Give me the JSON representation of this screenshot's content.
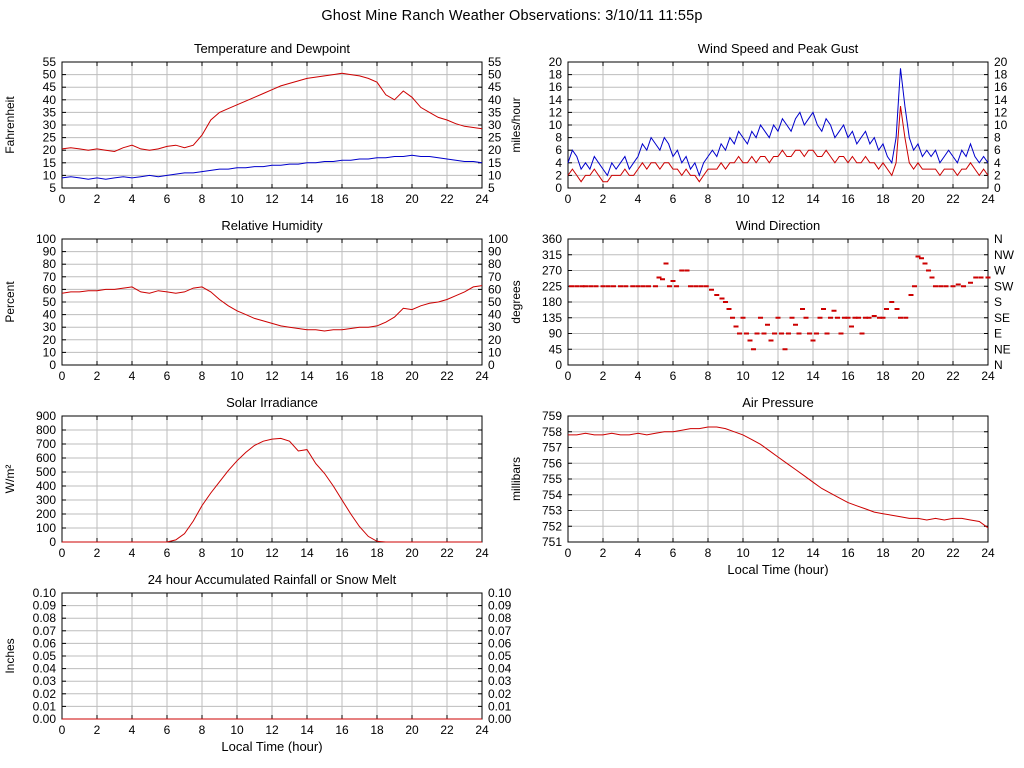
{
  "page_title": "Ghost Mine Ranch Weather Observations: 3/10/11 11:55p",
  "colors": {
    "red": "#cc0000",
    "blue": "#0000cc",
    "grid": "#bdbdbd",
    "axis": "#000000",
    "text": "#000000"
  },
  "x_axis": {
    "min": 0,
    "max": 24,
    "step": 2,
    "label": "Local Time (hour)"
  },
  "chart_data": [
    {
      "id": "temperature",
      "type": "line",
      "title": "Temperature and Dewpoint",
      "ylabel": "Fahrenheit",
      "ylim": [
        5,
        55
      ],
      "ystep": 5,
      "ydecimals": 0,
      "right_axis": "mirror",
      "xlabel": "",
      "x_ticks": [
        0,
        2,
        4,
        6,
        8,
        10,
        12,
        14,
        16,
        18,
        20,
        22,
        24
      ],
      "series": [
        {
          "name": "Temperature",
          "color": "#cc0000",
          "values": [
            20.5,
            21,
            20.5,
            20,
            20.5,
            20,
            19.5,
            21,
            22,
            20.5,
            20,
            20.5,
            21.5,
            22,
            21,
            22,
            26,
            32,
            35,
            36.5,
            38,
            39.5,
            41,
            42.5,
            44,
            45.5,
            46.5,
            47.5,
            48.5,
            49,
            49.5,
            50,
            50.5,
            50,
            49.5,
            48.5,
            47,
            42,
            40,
            43.5,
            41,
            37,
            35,
            33,
            32,
            30.5,
            29.5,
            29,
            28.5
          ]
        },
        {
          "name": "Dewpoint",
          "color": "#0000cc",
          "values": [
            9,
            9.5,
            9,
            8.5,
            9,
            8.5,
            9,
            9.5,
            9,
            9.5,
            10,
            9.5,
            10,
            10.5,
            11,
            11,
            11.5,
            12,
            12.5,
            12.5,
            13,
            13,
            13.5,
            13.5,
            14,
            14,
            14.5,
            14.5,
            15,
            15,
            15.5,
            15.5,
            16,
            16,
            16.5,
            16.5,
            17,
            17,
            17.5,
            17.5,
            18,
            17.5,
            17.5,
            17,
            16.5,
            16,
            15.5,
            15.5,
            15
          ]
        }
      ]
    },
    {
      "id": "windspeed",
      "type": "line",
      "title": "Wind Speed and Peak Gust",
      "ylabel": "miles/hour",
      "ylim": [
        0,
        20
      ],
      "ystep": 2,
      "ydecimals": 0,
      "right_axis": "mirror",
      "xlabel": "",
      "x_ticks": [
        0,
        2,
        4,
        6,
        8,
        10,
        12,
        14,
        16,
        18,
        20,
        22,
        24
      ],
      "series": [
        {
          "name": "Peak Gust",
          "color": "#0000cc",
          "values": [
            4,
            6,
            5,
            3,
            4,
            3,
            5,
            4,
            3,
            2,
            4,
            3,
            4,
            5,
            3,
            4,
            5,
            7,
            6,
            8,
            7,
            6,
            8,
            7,
            5,
            6,
            4,
            5,
            3,
            4,
            2,
            4,
            5,
            6,
            5,
            7,
            6,
            8,
            7,
            9,
            8,
            7,
            9,
            8,
            10,
            9,
            8,
            10,
            9,
            11,
            10,
            9,
            11,
            12,
            10,
            11,
            12,
            10,
            9,
            11,
            10,
            8,
            9,
            10,
            8,
            9,
            7,
            8,
            9,
            7,
            8,
            6,
            7,
            5,
            4,
            8,
            19,
            13,
            8,
            6,
            7,
            5,
            6,
            5,
            6,
            4,
            5,
            6,
            5,
            4,
            6,
            5,
            7,
            5,
            4,
            5,
            4
          ]
        },
        {
          "name": "Wind Speed",
          "color": "#cc0000",
          "values": [
            2,
            3,
            2,
            1,
            2,
            2,
            3,
            2,
            1,
            1,
            2,
            2,
            2,
            3,
            2,
            2,
            3,
            4,
            3,
            4,
            4,
            3,
            4,
            4,
            3,
            3,
            2,
            3,
            2,
            2,
            1,
            2,
            3,
            3,
            3,
            4,
            3,
            4,
            4,
            5,
            4,
            4,
            5,
            4,
            5,
            5,
            4,
            5,
            5,
            6,
            5,
            5,
            6,
            6,
            5,
            6,
            6,
            5,
            5,
            6,
            5,
            4,
            5,
            5,
            4,
            5,
            4,
            4,
            5,
            4,
            4,
            3,
            4,
            3,
            2,
            4,
            13,
            8,
            4,
            3,
            4,
            3,
            3,
            3,
            3,
            2,
            3,
            3,
            3,
            2,
            3,
            3,
            4,
            3,
            2,
            3,
            2
          ]
        }
      ]
    },
    {
      "id": "humidity",
      "type": "line",
      "title": "Relative Humidity",
      "ylabel": "Percent",
      "ylim": [
        0,
        100
      ],
      "ystep": 10,
      "ydecimals": 0,
      "right_axis": "mirror",
      "xlabel": "",
      "x_ticks": [
        0,
        2,
        4,
        6,
        8,
        10,
        12,
        14,
        16,
        18,
        20,
        22,
        24
      ],
      "series": [
        {
          "name": "Relative Humidity",
          "color": "#cc0000",
          "values": [
            57,
            58,
            58,
            59,
            59,
            60,
            60,
            61,
            62,
            58,
            57,
            59,
            58,
            57,
            58,
            61,
            62,
            58,
            52,
            47,
            43,
            40,
            37,
            35,
            33,
            31,
            30,
            29,
            28,
            28,
            27,
            28,
            28,
            29,
            30,
            30,
            31,
            34,
            38,
            45,
            44,
            47,
            49,
            50,
            52,
            55,
            58,
            62,
            63
          ]
        }
      ]
    },
    {
      "id": "winddir",
      "type": "scatter",
      "title": "Wind Direction",
      "ylabel": "degrees",
      "ylim": [
        0,
        360
      ],
      "ystep": 45,
      "ydecimals": 0,
      "right_axis": "labels",
      "right_labels": [
        "N",
        "NE",
        "E",
        "SE",
        "S",
        "SW",
        "W",
        "NW",
        "N"
      ],
      "xlabel": "",
      "x_ticks": [
        0,
        2,
        4,
        6,
        8,
        10,
        12,
        14,
        16,
        18,
        20,
        22,
        24
      ],
      "series": [
        {
          "name": "Wind Direction",
          "color": "#cc0000",
          "points": [
            [
              0.2,
              225
            ],
            [
              0.5,
              225
            ],
            [
              0.8,
              225
            ],
            [
              1.0,
              225
            ],
            [
              1.3,
              225
            ],
            [
              1.6,
              225
            ],
            [
              2.0,
              225
            ],
            [
              2.3,
              225
            ],
            [
              2.6,
              225
            ],
            [
              3.0,
              225
            ],
            [
              3.3,
              225
            ],
            [
              3.7,
              225
            ],
            [
              4.0,
              225
            ],
            [
              4.3,
              225
            ],
            [
              4.6,
              225
            ],
            [
              5.0,
              225
            ],
            [
              5.2,
              250
            ],
            [
              5.4,
              245
            ],
            [
              5.6,
              290
            ],
            [
              5.8,
              225
            ],
            [
              6.0,
              240
            ],
            [
              6.2,
              225
            ],
            [
              6.5,
              270
            ],
            [
              6.8,
              270
            ],
            [
              7.0,
              225
            ],
            [
              7.3,
              225
            ],
            [
              7.6,
              225
            ],
            [
              7.9,
              225
            ],
            [
              8.2,
              215
            ],
            [
              8.5,
              200
            ],
            [
              8.8,
              190
            ],
            [
              9.0,
              180
            ],
            [
              9.2,
              160
            ],
            [
              9.4,
              135
            ],
            [
              9.6,
              110
            ],
            [
              9.8,
              90
            ],
            [
              10.0,
              135
            ],
            [
              10.2,
              90
            ],
            [
              10.4,
              70
            ],
            [
              10.6,
              45
            ],
            [
              10.8,
              90
            ],
            [
              11.0,
              135
            ],
            [
              11.2,
              90
            ],
            [
              11.4,
              115
            ],
            [
              11.6,
              70
            ],
            [
              11.8,
              90
            ],
            [
              12.0,
              135
            ],
            [
              12.2,
              90
            ],
            [
              12.4,
              45
            ],
            [
              12.6,
              90
            ],
            [
              12.8,
              135
            ],
            [
              13.0,
              115
            ],
            [
              13.2,
              90
            ],
            [
              13.4,
              160
            ],
            [
              13.6,
              135
            ],
            [
              13.8,
              90
            ],
            [
              14.0,
              70
            ],
            [
              14.2,
              90
            ],
            [
              14.4,
              135
            ],
            [
              14.6,
              160
            ],
            [
              14.8,
              90
            ],
            [
              15.0,
              135
            ],
            [
              15.2,
              155
            ],
            [
              15.4,
              135
            ],
            [
              15.6,
              90
            ],
            [
              15.8,
              135
            ],
            [
              16.0,
              135
            ],
            [
              16.2,
              110
            ],
            [
              16.4,
              135
            ],
            [
              16.6,
              135
            ],
            [
              16.8,
              90
            ],
            [
              17.0,
              135
            ],
            [
              17.2,
              135
            ],
            [
              17.5,
              140
            ],
            [
              17.8,
              135
            ],
            [
              18.0,
              135
            ],
            [
              18.2,
              160
            ],
            [
              18.5,
              180
            ],
            [
              18.8,
              160
            ],
            [
              19.0,
              135
            ],
            [
              19.3,
              135
            ],
            [
              19.6,
              200
            ],
            [
              19.8,
              225
            ],
            [
              20.0,
              310
            ],
            [
              20.2,
              305
            ],
            [
              20.4,
              290
            ],
            [
              20.6,
              270
            ],
            [
              20.8,
              250
            ],
            [
              21.0,
              225
            ],
            [
              21.3,
              225
            ],
            [
              21.6,
              225
            ],
            [
              22.0,
              225
            ],
            [
              22.3,
              230
            ],
            [
              22.6,
              225
            ],
            [
              23.0,
              235
            ],
            [
              23.3,
              250
            ],
            [
              23.6,
              250
            ],
            [
              24.0,
              250
            ]
          ]
        }
      ]
    },
    {
      "id": "solar",
      "type": "line",
      "title": "Solar Irradiance",
      "ylabel": "W/m²",
      "ylim": [
        0,
        900
      ],
      "ystep": 100,
      "ydecimals": 0,
      "right_axis": "none",
      "xlabel": "",
      "x_ticks": [
        0,
        2,
        4,
        6,
        8,
        10,
        12,
        14,
        16,
        18,
        20,
        22,
        24
      ],
      "series": [
        {
          "name": "Solar Irradiance",
          "color": "#cc0000",
          "values": [
            0,
            0,
            0,
            0,
            0,
            0,
            0,
            0,
            0,
            0,
            0,
            0,
            0,
            15,
            60,
            150,
            260,
            350,
            430,
            510,
            580,
            640,
            690,
            720,
            735,
            740,
            720,
            650,
            660,
            560,
            490,
            400,
            300,
            200,
            110,
            40,
            5,
            0,
            0,
            0,
            0,
            0,
            0,
            0,
            0,
            0,
            0,
            0,
            0
          ]
        }
      ]
    },
    {
      "id": "pressure",
      "type": "line",
      "title": "Air Pressure",
      "ylabel": "millibars",
      "ylim": [
        751,
        759
      ],
      "ystep": 1,
      "ydecimals": 0,
      "right_axis": "none",
      "xlabel": "Local Time (hour)",
      "x_ticks": [
        0,
        2,
        4,
        6,
        8,
        10,
        12,
        14,
        16,
        18,
        20,
        22,
        24
      ],
      "series": [
        {
          "name": "Air Pressure",
          "color": "#cc0000",
          "values": [
            757.8,
            757.8,
            757.9,
            757.8,
            757.8,
            757.9,
            757.8,
            757.8,
            757.9,
            757.8,
            757.9,
            758.0,
            758.0,
            758.1,
            758.2,
            758.2,
            758.3,
            758.3,
            758.2,
            758.0,
            757.8,
            757.5,
            757.2,
            756.8,
            756.4,
            756.0,
            755.6,
            755.2,
            754.8,
            754.4,
            754.1,
            753.8,
            753.5,
            753.3,
            753.1,
            752.9,
            752.8,
            752.7,
            752.6,
            752.5,
            752.5,
            752.4,
            752.5,
            752.4,
            752.5,
            752.5,
            752.4,
            752.3,
            751.9
          ]
        }
      ]
    },
    {
      "id": "rain",
      "type": "line",
      "title": "24 hour Accumulated Rainfall or Snow Melt",
      "ylabel": "Inches",
      "ylim": [
        0,
        0.1
      ],
      "ystep": 0.01,
      "ydecimals": 2,
      "right_axis": "mirror",
      "xlabel": "Local Time (hour)",
      "x_ticks": [
        0,
        2,
        4,
        6,
        8,
        10,
        12,
        14,
        16,
        18,
        20,
        22,
        24
      ],
      "series": [
        {
          "name": "Accumulated Rainfall",
          "color": "#cc0000",
          "values": [
            0,
            0
          ]
        }
      ]
    }
  ]
}
